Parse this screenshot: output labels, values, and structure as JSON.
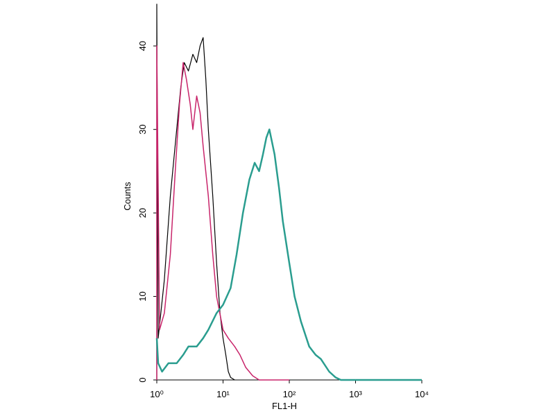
{
  "chart_data": {
    "type": "line",
    "log_x": true,
    "x_label": "FL1-H",
    "y_label": "Counts",
    "xlim": [
      1,
      10000
    ],
    "xticks": [
      {
        "value": 1,
        "label": "10⁰"
      },
      {
        "value": 10,
        "label": "10¹"
      },
      {
        "value": 100,
        "label": "10²"
      },
      {
        "value": 1000,
        "label": "10³"
      },
      {
        "value": 10000,
        "label": "10⁴"
      }
    ],
    "ylim": [
      0,
      45
    ],
    "yticks": [
      0,
      10,
      20,
      30,
      40
    ],
    "series": [
      {
        "color": "#000000",
        "width": 1.2,
        "x": [
          1,
          1,
          1.05,
          1.3,
          1.6,
          2,
          2.3,
          2.6,
          3,
          3.5,
          4,
          4.5,
          5,
          5.5,
          6,
          7,
          8,
          9,
          10,
          11,
          12,
          13,
          15
        ],
        "values": [
          0,
          45,
          5,
          12,
          22,
          30,
          35,
          38,
          37,
          39,
          38,
          40,
          41,
          36,
          30,
          22,
          14,
          8,
          5,
          3,
          1,
          0.3,
          0
        ]
      },
      {
        "color": "#c8246a",
        "width": 1.5,
        "x": [
          1,
          1,
          1.1,
          1.3,
          1.6,
          1.9,
          2.2,
          2.5,
          2.8,
          3.2,
          3.5,
          4,
          4.5,
          5,
          6,
          7,
          8,
          10,
          12,
          15,
          18,
          22,
          28,
          35,
          100
        ],
        "values": [
          0,
          40,
          6,
          8,
          15,
          25,
          33,
          38,
          36,
          33,
          30,
          34,
          32,
          28,
          22,
          15,
          10,
          6,
          5,
          4,
          3,
          1.5,
          0.5,
          0,
          0
        ]
      },
      {
        "color": "#2a9d8f",
        "width": 2.5,
        "x": [
          1,
          1.05,
          1.2,
          1.5,
          2,
          2.5,
          3,
          4,
          5,
          6,
          8,
          10,
          13,
          16,
          20,
          25,
          30,
          35,
          40,
          45,
          50,
          60,
          70,
          80,
          100,
          120,
          150,
          200,
          250,
          300,
          400,
          500,
          600,
          1000,
          10000
        ],
        "values": [
          5,
          2,
          1,
          2,
          2,
          3,
          4,
          4,
          5,
          6,
          8,
          9,
          11,
          15,
          20,
          24,
          26,
          25,
          27,
          29,
          30,
          27,
          23,
          19,
          14,
          10,
          7,
          4,
          3,
          2.5,
          1,
          0.3,
          0,
          0,
          0
        ]
      }
    ]
  }
}
